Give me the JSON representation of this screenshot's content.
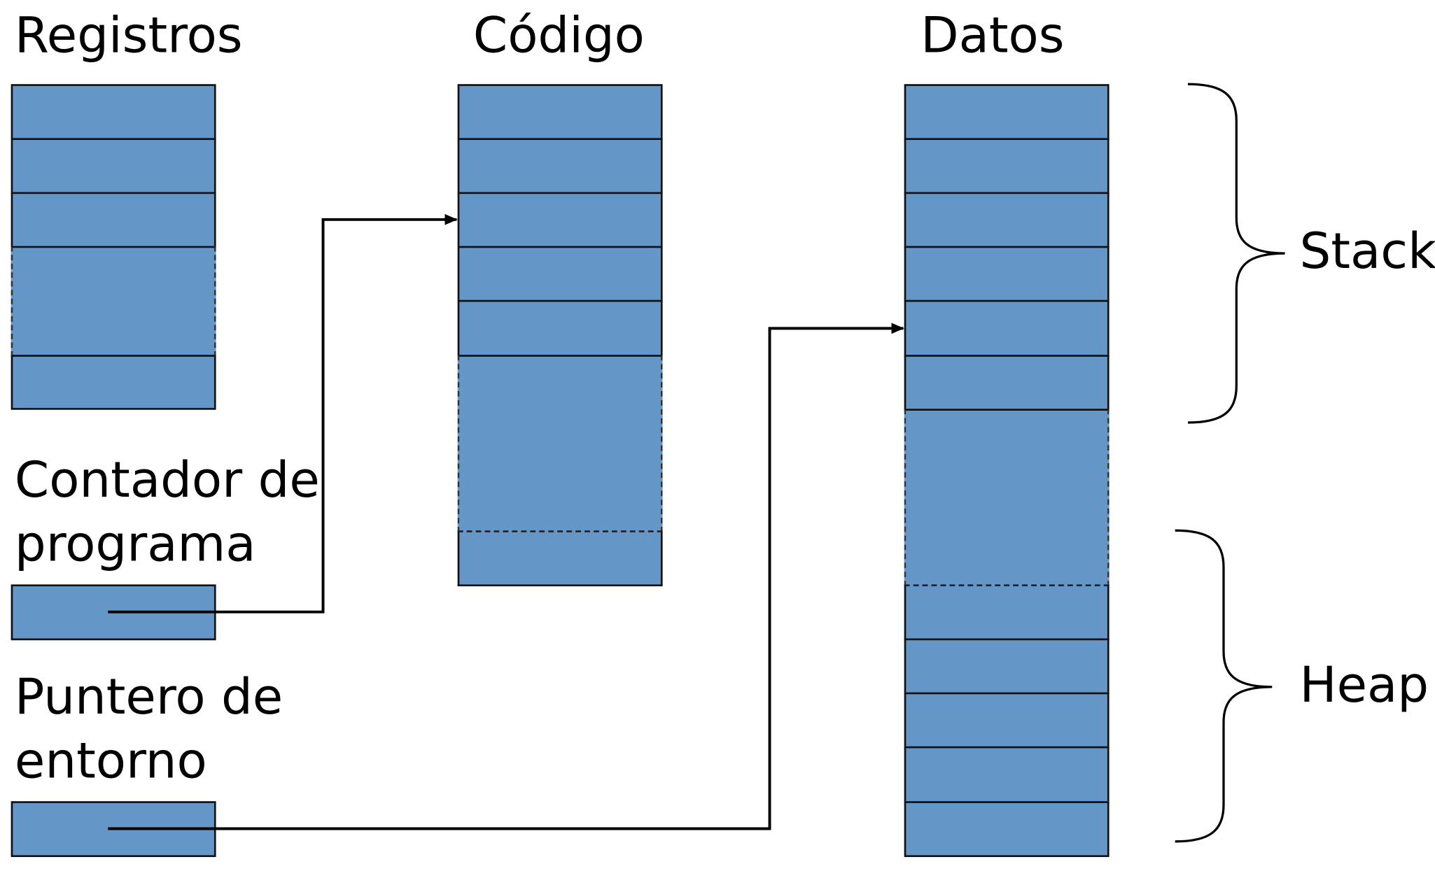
{
  "labels": {
    "registros": "Registros",
    "codigo": "Código",
    "datos": "Datos",
    "contador_line1": "Contador de",
    "contador_line2": "programa",
    "puntero_line1": "Puntero de",
    "puntero_line2": "entorno",
    "stack": "Stack",
    "heap": "Heap"
  },
  "colors": {
    "cell_fill": "#6497c7",
    "cell_border": "#111111",
    "background": "#ffffff"
  }
}
